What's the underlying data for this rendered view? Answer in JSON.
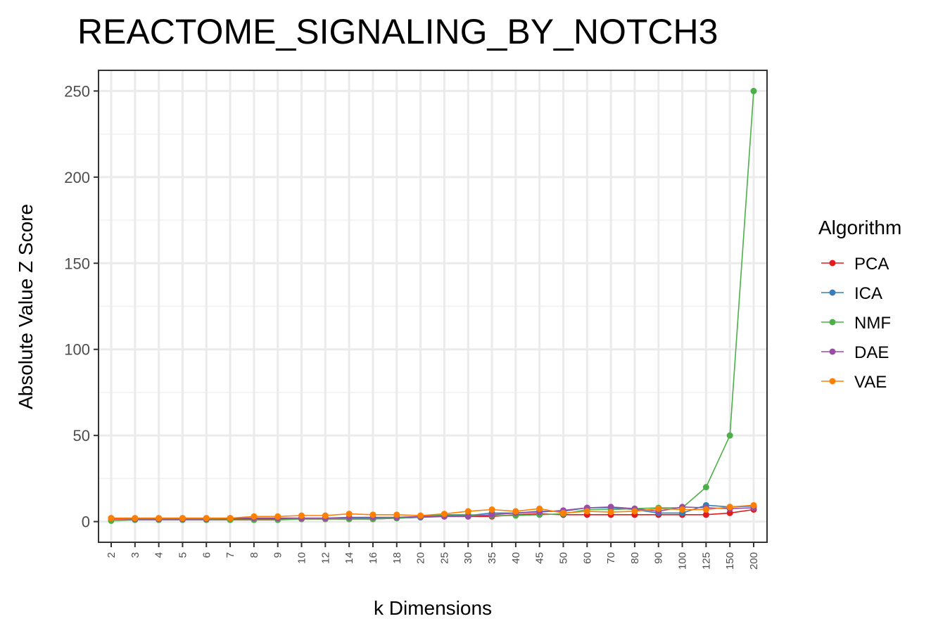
{
  "chart_data": {
    "type": "line",
    "title": "REACTOME_SIGNALING_BY_NOTCH3",
    "xlabel": "k Dimensions",
    "ylabel": "Absolute Value Z Score",
    "categories": [
      "2",
      "3",
      "4",
      "5",
      "6",
      "7",
      "8",
      "9",
      "10",
      "12",
      "14",
      "16",
      "18",
      "20",
      "25",
      "30",
      "35",
      "40",
      "45",
      "50",
      "60",
      "70",
      "80",
      "90",
      "100",
      "125",
      "150",
      "200"
    ],
    "y_ticks": [
      0,
      50,
      100,
      150,
      200,
      250
    ],
    "ylim": [
      -12,
      262
    ],
    "grid": true,
    "legend": {
      "title": "Algorithm",
      "position": "right"
    },
    "series": [
      {
        "name": "PCA",
        "color": "#E41A1C",
        "values": [
          1.5,
          1.5,
          1.5,
          1.5,
          1.5,
          1.5,
          1.5,
          1.5,
          1.5,
          1.5,
          1.5,
          1.5,
          2,
          2.5,
          3,
          3,
          3,
          4,
          4.5,
          4,
          4,
          4,
          4,
          4,
          4,
          4,
          5,
          7
        ]
      },
      {
        "name": "ICA",
        "color": "#377EB8",
        "values": [
          2,
          2,
          2,
          2,
          2,
          2,
          2,
          2,
          2,
          2,
          2,
          2,
          2,
          2.5,
          3.5,
          3.5,
          5,
          5,
          6,
          6,
          8,
          8,
          7,
          5,
          5,
          9.5,
          8.5,
          9
        ]
      },
      {
        "name": "NMF",
        "color": "#4DAF4A",
        "values": [
          0.5,
          1,
          1,
          1,
          1,
          1,
          1,
          1,
          1.5,
          1.5,
          1.5,
          1.5,
          2,
          3,
          4,
          4,
          3.5,
          3.5,
          4,
          4.5,
          7,
          7,
          7.5,
          8,
          8,
          20,
          50,
          250
        ]
      },
      {
        "name": "DAE",
        "color": "#984EA3",
        "values": [
          2,
          1.5,
          1.5,
          1.5,
          1.5,
          2,
          2,
          2,
          2,
          2,
          2.5,
          2.5,
          2.5,
          3,
          3,
          3,
          4,
          5,
          5.5,
          6.5,
          8,
          8.5,
          7.5,
          6,
          8.5,
          8,
          7.5,
          8
        ]
      },
      {
        "name": "VAE",
        "color": "#FF7F00",
        "values": [
          2,
          2,
          2,
          2,
          2,
          2,
          3,
          3,
          3.5,
          3.5,
          4.5,
          4,
          4,
          3.5,
          4.5,
          6,
          7,
          6,
          7.5,
          5,
          6,
          5.5,
          6,
          7.5,
          7,
          7,
          8.5,
          9.5
        ]
      }
    ]
  }
}
